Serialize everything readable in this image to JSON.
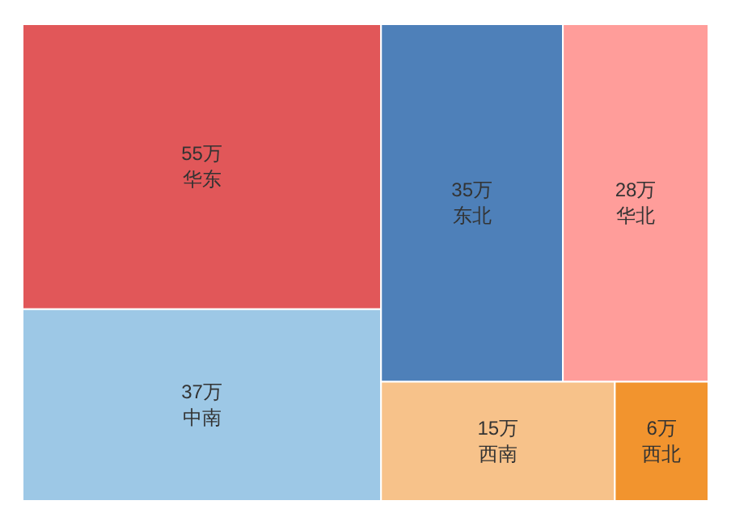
{
  "chart_data": {
    "type": "other",
    "categories": [
      "华东",
      "中南",
      "东北",
      "华北",
      "西南",
      "西北"
    ],
    "values": [
      55,
      37,
      35,
      28,
      15,
      6
    ],
    "value_labels": [
      "55万",
      "37万",
      "35万",
      "28万",
      "15万",
      "6万"
    ],
    "colors": [
      "#e15759",
      "#9dc8e6",
      "#4e80b9",
      "#ff9d9a",
      "#f7c28a",
      "#f2942e"
    ]
  }
}
